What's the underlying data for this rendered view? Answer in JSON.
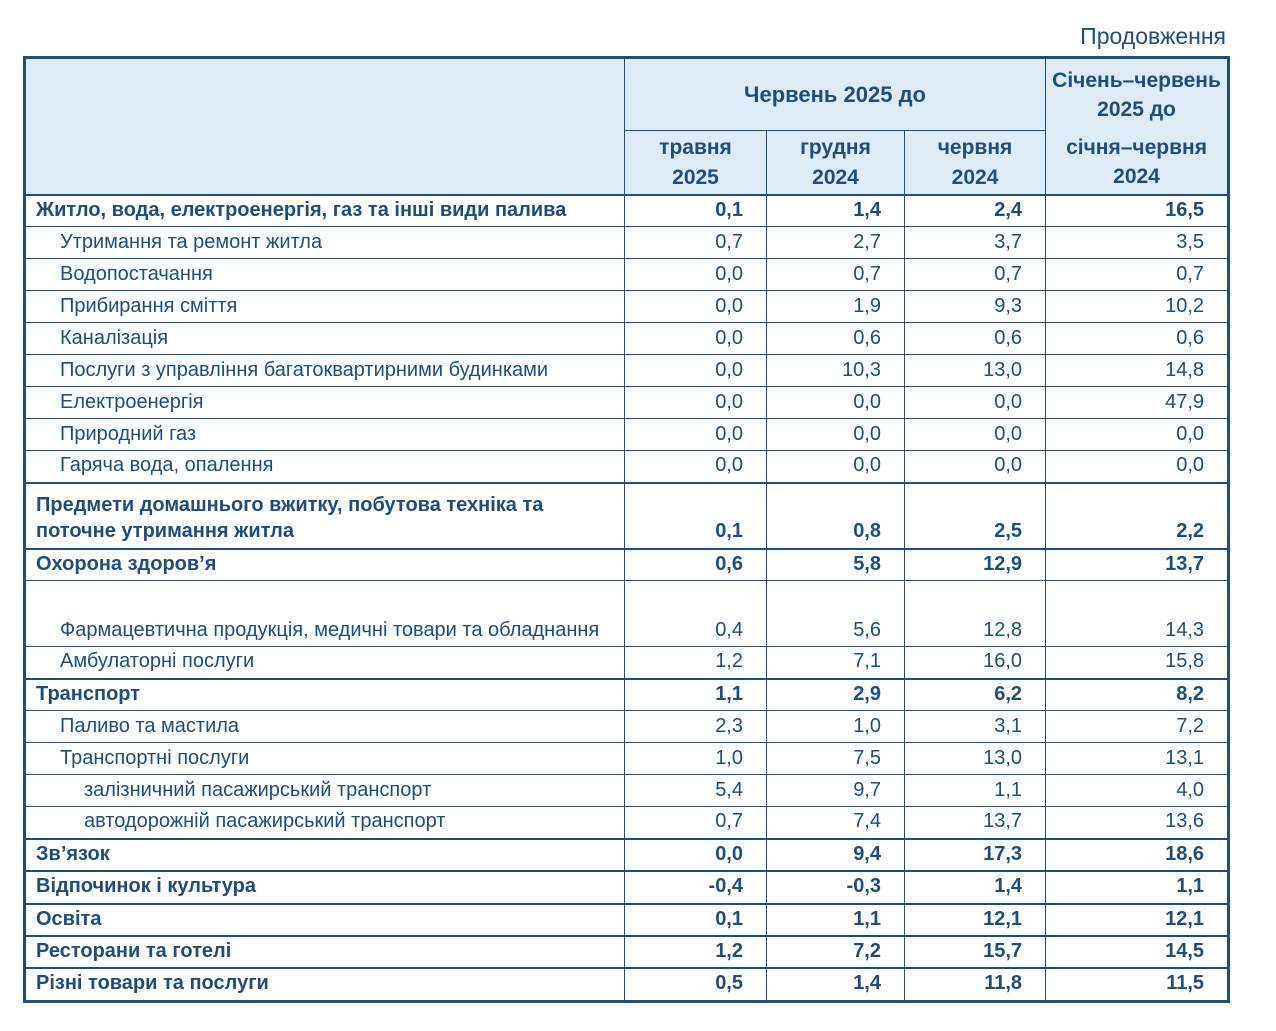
{
  "page": {
    "continuation_label": "Продовження"
  },
  "colors": {
    "text_navy": "#1F4E79",
    "header_background": "#DDEBF7",
    "border_navy": "#1F4E79",
    "period_box_border": "#000000",
    "body_background": "#FFFFFF"
  },
  "table": {
    "header": {
      "category_column_title": "",
      "group_title": "Червень 2025 до",
      "sub_columns": [
        {
          "month": "травня",
          "year": "2025"
        },
        {
          "month": "грудня",
          "year": "2024"
        },
        {
          "month": "червня",
          "year": "2024"
        }
      ],
      "period_column": {
        "line1": "Січень–червень 2025 до",
        "line2": "січня–червня 2024"
      }
    },
    "rows": [
      {
        "label": "Житло, вода, електроенергія, газ та інші види палива",
        "level": 0,
        "bold": true,
        "two_line": false,
        "values": [
          "0,1",
          "1,4",
          "2,4",
          "16,5"
        ]
      },
      {
        "label": "Утримання та ремонт житла",
        "level": 1,
        "bold": false,
        "two_line": false,
        "values": [
          "0,7",
          "2,7",
          "3,7",
          "3,5"
        ]
      },
      {
        "label": "Водопостачання",
        "level": 1,
        "bold": false,
        "two_line": false,
        "values": [
          "0,0",
          "0,7",
          "0,7",
          "0,7"
        ]
      },
      {
        "label": "Прибирання сміття",
        "level": 1,
        "bold": false,
        "two_line": false,
        "values": [
          "0,0",
          "1,9",
          "9,3",
          "10,2"
        ]
      },
      {
        "label": "Каналізація",
        "level": 1,
        "bold": false,
        "two_line": false,
        "values": [
          "0,0",
          "0,6",
          "0,6",
          "0,6"
        ]
      },
      {
        "label": "Послуги з управління багатоквартирними будинками",
        "level": 1,
        "bold": false,
        "two_line": false,
        "values": [
          "0,0",
          "10,3",
          "13,0",
          "14,8"
        ]
      },
      {
        "label": "Електроенергія",
        "level": 1,
        "bold": false,
        "two_line": false,
        "values": [
          "0,0",
          "0,0",
          "0,0",
          "47,9"
        ]
      },
      {
        "label": "Природний газ",
        "level": 1,
        "bold": false,
        "two_line": false,
        "values": [
          "0,0",
          "0,0",
          "0,0",
          "0,0"
        ]
      },
      {
        "label": "Гаряча вода, опалення",
        "level": 1,
        "bold": false,
        "two_line": false,
        "values": [
          "0,0",
          "0,0",
          "0,0",
          "0,0"
        ]
      },
      {
        "label": "Предмети домашнього вжитку, побутова техніка та поточне утримання житла",
        "level": 0,
        "bold": true,
        "two_line": true,
        "values": [
          "0,1",
          "0,8",
          "2,5",
          "2,2"
        ]
      },
      {
        "label": "Охорона здоров’я",
        "level": 0,
        "bold": true,
        "two_line": false,
        "values": [
          "0,6",
          "5,8",
          "12,9",
          "13,7"
        ]
      },
      {
        "label": "Фармацевтична продукція, медичні товари та обладнання",
        "level": 1,
        "bold": false,
        "two_line": true,
        "values": [
          "0,4",
          "5,6",
          "12,8",
          "14,3"
        ]
      },
      {
        "label": "Амбулаторні послуги",
        "level": 1,
        "bold": false,
        "two_line": false,
        "values": [
          "1,2",
          "7,1",
          "16,0",
          "15,8"
        ]
      },
      {
        "label": "Транспорт",
        "level": 0,
        "bold": true,
        "two_line": false,
        "values": [
          "1,1",
          "2,9",
          "6,2",
          "8,2"
        ]
      },
      {
        "label": "Паливо та мастила",
        "level": 1,
        "bold": false,
        "two_line": false,
        "values": [
          "2,3",
          "1,0",
          "3,1",
          "7,2"
        ]
      },
      {
        "label": "Транспортні послуги",
        "level": 1,
        "bold": false,
        "two_line": false,
        "values": [
          "1,0",
          "7,5",
          "13,0",
          "13,1"
        ]
      },
      {
        "label": "залізничний пасажирський транспорт",
        "level": 2,
        "bold": false,
        "two_line": false,
        "values": [
          "5,4",
          "9,7",
          "1,1",
          "4,0"
        ]
      },
      {
        "label": "автодорожній пасажирський транспорт",
        "level": 2,
        "bold": false,
        "two_line": false,
        "values": [
          "0,7",
          "7,4",
          "13,7",
          "13,6"
        ]
      },
      {
        "label": "Зв’язок",
        "level": 0,
        "bold": true,
        "two_line": false,
        "values": [
          "0,0",
          "9,4",
          "17,3",
          "18,6"
        ]
      },
      {
        "label": "Відпочинок і культура",
        "level": 0,
        "bold": true,
        "two_line": false,
        "values": [
          "-0,4",
          "-0,3",
          "1,4",
          "1,1"
        ]
      },
      {
        "label": "Освіта",
        "level": 0,
        "bold": true,
        "two_line": false,
        "values": [
          "0,1",
          "1,1",
          "12,1",
          "12,1"
        ]
      },
      {
        "label": "Ресторани та готелі",
        "level": 0,
        "bold": true,
        "two_line": false,
        "values": [
          "1,2",
          "7,2",
          "15,7",
          "14,5"
        ]
      },
      {
        "label": "Різні товари та послуги",
        "level": 0,
        "bold": true,
        "two_line": false,
        "values": [
          "0,5",
          "1,4",
          "11,8",
          "11,5"
        ]
      }
    ]
  }
}
